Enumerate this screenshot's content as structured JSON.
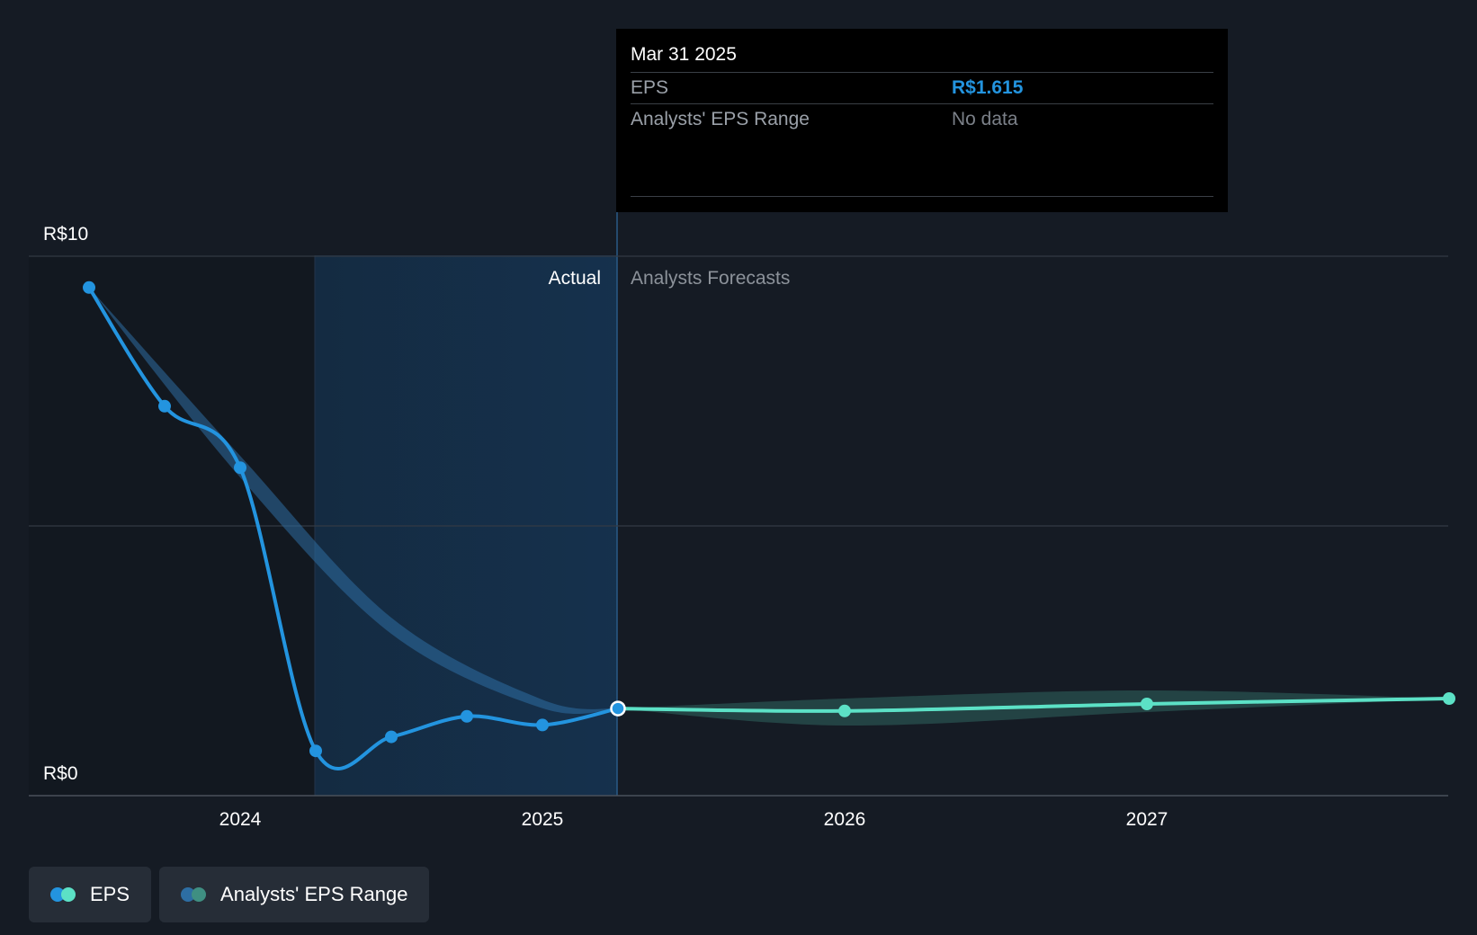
{
  "chart_data": {
    "type": "line",
    "y_ticks": [
      "R$10",
      "R$0"
    ],
    "ylim": [
      0,
      10
    ],
    "x_ticks": [
      "2024",
      "2025",
      "2026",
      "2027"
    ],
    "region_labels": {
      "actual": "Actual",
      "forecast": "Analysts Forecasts"
    },
    "grid": true,
    "series": [
      {
        "name": "EPS",
        "color": "#2394df",
        "points": [
          {
            "x": 2023.5,
            "y": 9.42
          },
          {
            "x": 2023.75,
            "y": 7.22
          },
          {
            "x": 2024.0,
            "y": 6.08
          },
          {
            "x": 2024.25,
            "y": 0.83
          },
          {
            "x": 2024.5,
            "y": 1.09
          },
          {
            "x": 2024.75,
            "y": 1.47
          },
          {
            "x": 2025.0,
            "y": 1.31
          },
          {
            "x": 2025.25,
            "y": 1.615
          }
        ]
      },
      {
        "name": "EPS",
        "color": "#5ce1c6",
        "points": [
          {
            "x": 2025.25,
            "y": 1.615
          },
          {
            "x": 2026.0,
            "y": 1.57
          },
          {
            "x": 2027.0,
            "y": 1.7
          },
          {
            "x": 2028.0,
            "y": 1.8
          }
        ]
      }
    ],
    "range_band": {
      "name": "Analysts' EPS Range",
      "colors": [
        "#2d6ea3",
        "#3f8f82"
      ],
      "past": [
        {
          "x": 2023.5,
          "lo": 9.42,
          "hi": 9.42
        },
        {
          "x": 2024.0,
          "lo": 5.9,
          "hi": 6.3
        },
        {
          "x": 2024.5,
          "lo": 3.0,
          "hi": 3.3
        },
        {
          "x": 2025.0,
          "lo": 1.62,
          "hi": 1.78
        },
        {
          "x": 2025.25,
          "lo": 1.615,
          "hi": 1.615
        }
      ],
      "future": [
        {
          "x": 2025.25,
          "lo": 1.615,
          "hi": 1.615
        },
        {
          "x": 2026.0,
          "lo": 1.3,
          "hi": 1.8
        },
        {
          "x": 2027.0,
          "lo": 1.55,
          "hi": 1.95
        },
        {
          "x": 2028.0,
          "lo": 1.8,
          "hi": 1.8
        }
      ]
    },
    "highlight": {
      "x": 2025.25,
      "y": 1.615
    }
  },
  "tooltip": {
    "date": "Mar 31 2025",
    "eps_label": "EPS",
    "eps_value": "R$1.615",
    "range_label": "Analysts' EPS Range",
    "range_value": "No data"
  },
  "legend": {
    "eps_label": "EPS",
    "range_label": "Analysts' EPS Range",
    "eps_colors": [
      "#2394df",
      "#5ce1c6"
    ],
    "range_colors": [
      "#2d6ea3",
      "#3f8f82"
    ]
  }
}
